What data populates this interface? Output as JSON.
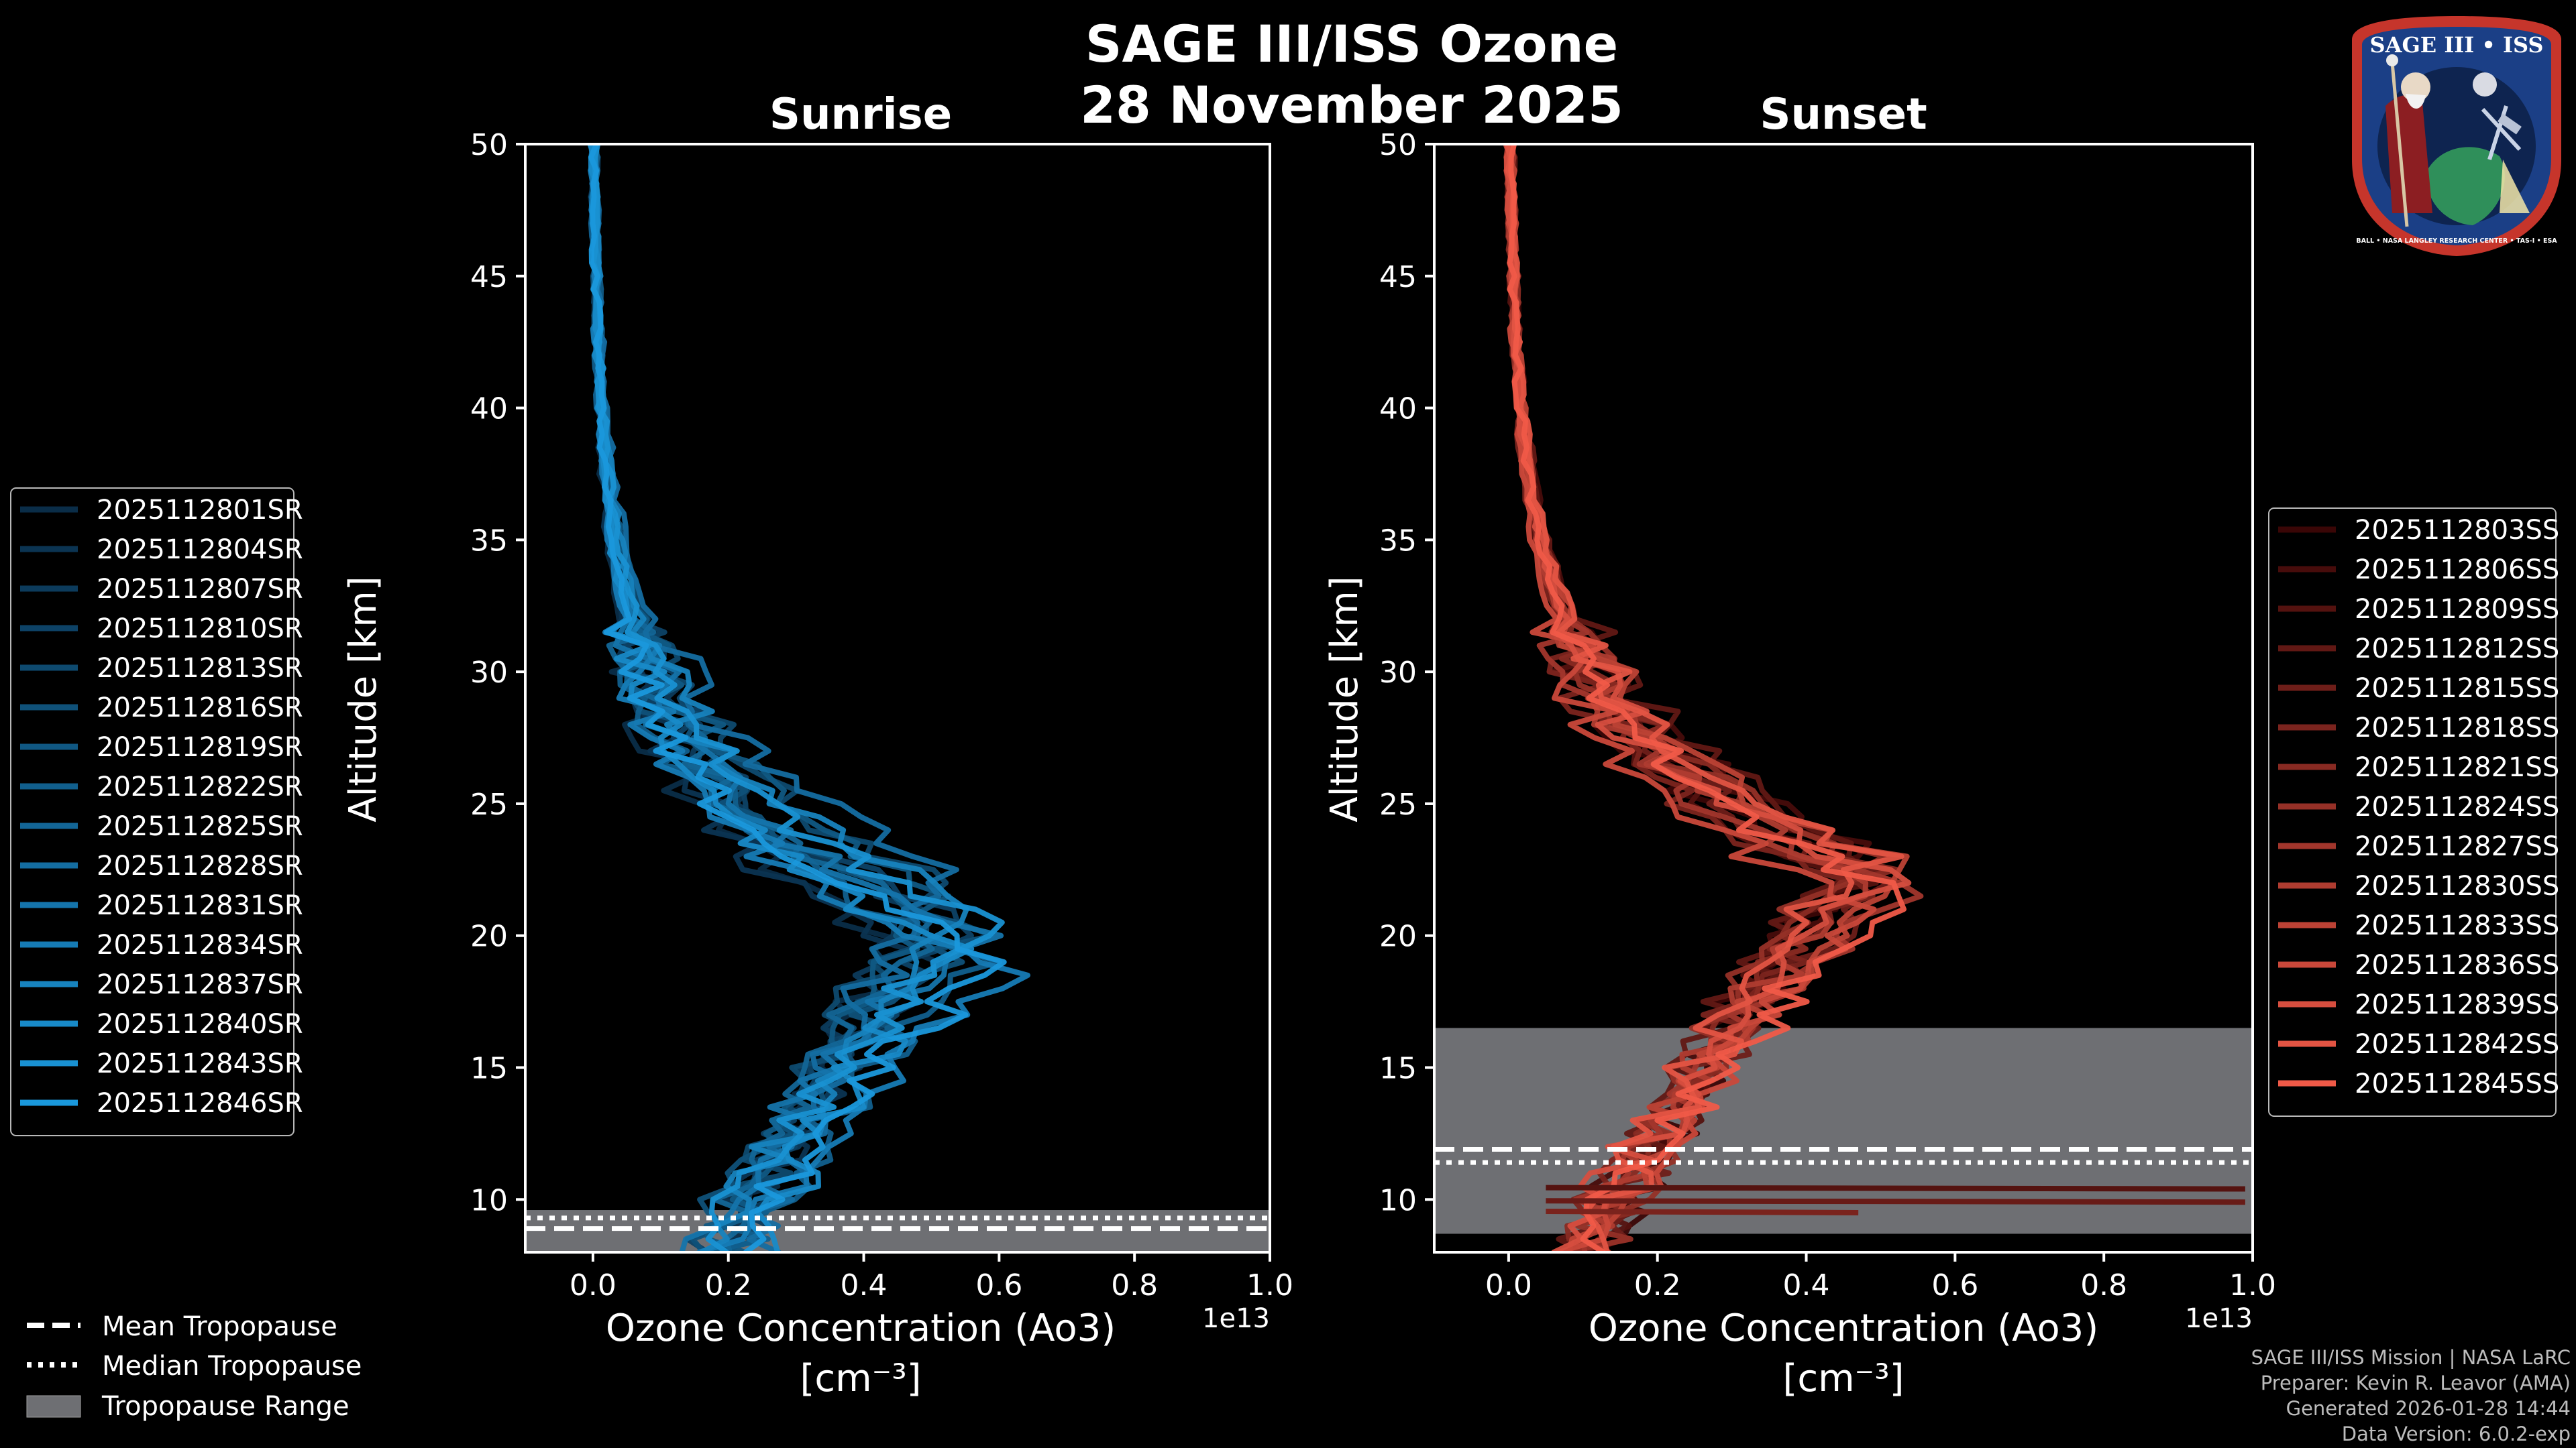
{
  "figure": {
    "title_line1": "SAGE III/ISS Ozone",
    "title_line2": "28 November 2025"
  },
  "colors": {
    "background": "#000000",
    "sunrise_light": "#1a98dc",
    "sunrise_dark": "#0a2d48",
    "sunset_light": "#f05a48",
    "sunset_dark": "#3a0606",
    "tropopause_fill": "#6e6f73",
    "axis": "#ffffff"
  },
  "chart_data": [
    {
      "type": "line",
      "panel": "sunrise",
      "title": "Sunrise",
      "xlabel": "Ozone Concentration (Ao3)",
      "xunits": "[cm⁻³]",
      "ylabel": "Altitude [km]",
      "x_offset_label": "1e13",
      "xlim": [
        -0.1,
        1.0
      ],
      "ylim": [
        8,
        50
      ],
      "xticks": [
        0.0,
        0.2,
        0.4,
        0.6,
        0.8,
        1.0
      ],
      "xtick_labels": [
        "0.0",
        "0.2",
        "0.4",
        "0.6",
        "0.8",
        "1.0"
      ],
      "yticks": [
        10,
        15,
        20,
        25,
        30,
        35,
        40,
        45,
        50
      ],
      "ytick_labels": [
        "10",
        "15",
        "20",
        "25",
        "30",
        "35",
        "40",
        "45",
        "50"
      ],
      "tropopause": {
        "mean": 8.9,
        "median": 9.3,
        "range": [
          8.0,
          9.6
        ]
      },
      "legend_position": "left",
      "series": [
        {
          "name": "2025112801SR",
          "peak_alt": 19.5,
          "peak_val": 0.47,
          "low_val": 0.2
        },
        {
          "name": "2025112804SR",
          "peak_alt": 19.0,
          "peak_val": 0.52,
          "low_val": 0.18
        },
        {
          "name": "2025112807SR",
          "peak_alt": 21.0,
          "peak_val": 0.5,
          "low_val": 0.22
        },
        {
          "name": "2025112810SR",
          "peak_alt": 20.5,
          "peak_val": 0.56,
          "low_val": 0.16
        },
        {
          "name": "2025112813SR",
          "peak_alt": 22.0,
          "peak_val": 0.53,
          "low_val": 0.2
        },
        {
          "name": "2025112816SR",
          "peak_alt": 20.0,
          "peak_val": 0.58,
          "low_val": 0.14
        },
        {
          "name": "2025112819SR",
          "peak_alt": 21.5,
          "peak_val": 0.55,
          "low_val": 0.19
        },
        {
          "name": "2025112822SR",
          "peak_alt": 19.0,
          "peak_val": 0.6,
          "low_val": 0.21
        },
        {
          "name": "2025112825SR",
          "peak_alt": 20.5,
          "peak_val": 0.51,
          "low_val": 0.17
        },
        {
          "name": "2025112828SR",
          "peak_alt": 22.5,
          "peak_val": 0.54,
          "low_val": 0.23
        },
        {
          "name": "2025112831SR",
          "peak_alt": 20.0,
          "peak_val": 0.57,
          "low_val": 0.15
        },
        {
          "name": "2025112834SR",
          "peak_alt": 18.5,
          "peak_val": 0.62,
          "low_val": 0.2
        },
        {
          "name": "2025112837SR",
          "peak_alt": 21.0,
          "peak_val": 0.59,
          "low_val": 0.18
        },
        {
          "name": "2025112840SR",
          "peak_alt": 19.5,
          "peak_val": 0.55,
          "low_val": 0.24
        },
        {
          "name": "2025112843SR",
          "peak_alt": 20.5,
          "peak_val": 0.6,
          "low_val": 0.16
        },
        {
          "name": "2025112846SR",
          "peak_alt": 19.0,
          "peak_val": 0.63,
          "low_val": 0.2
        }
      ]
    },
    {
      "type": "line",
      "panel": "sunset",
      "title": "Sunset",
      "xlabel": "Ozone Concentration (Ao3)",
      "xunits": "[cm⁻³]",
      "ylabel": "Altitude [km]",
      "x_offset_label": "1e13",
      "xlim": [
        -0.1,
        1.0
      ],
      "ylim": [
        8,
        50
      ],
      "xticks": [
        0.0,
        0.2,
        0.4,
        0.6,
        0.8,
        1.0
      ],
      "xtick_labels": [
        "0.0",
        "0.2",
        "0.4",
        "0.6",
        "0.8",
        "1.0"
      ],
      "yticks": [
        10,
        15,
        20,
        25,
        30,
        35,
        40,
        45,
        50
      ],
      "ytick_labels": [
        "10",
        "15",
        "20",
        "25",
        "30",
        "35",
        "40",
        "45",
        "50"
      ],
      "tropopause": {
        "mean": 11.9,
        "median": 11.4,
        "range": [
          8.7,
          16.5
        ]
      },
      "legend_position": "right",
      "series": [
        {
          "name": "2025112803SS",
          "peak_alt": 22.5,
          "peak_val": 0.46,
          "low_val": 0.14
        },
        {
          "name": "2025112806SS",
          "peak_alt": 23.0,
          "peak_val": 0.5,
          "low_val": 0.1
        },
        {
          "name": "2025112809SS",
          "peak_alt": 22.0,
          "peak_val": 0.47,
          "low_val": 0.12
        },
        {
          "name": "2025112812SS",
          "peak_alt": 23.5,
          "peak_val": 0.49,
          "low_val": 0.09
        },
        {
          "name": "2025112815SS",
          "peak_alt": 22.0,
          "peak_val": 0.52,
          "low_val": 0.11
        },
        {
          "name": "2025112818SS",
          "peak_alt": 21.5,
          "peak_val": 0.48,
          "low_val": 0.08
        },
        {
          "name": "2025112821SS",
          "peak_alt": 22.5,
          "peak_val": 0.51,
          "low_val": 0.1
        },
        {
          "name": "2025112824SS",
          "peak_alt": 23.0,
          "peak_val": 0.47,
          "low_val": 0.12
        },
        {
          "name": "2025112827SS",
          "peak_alt": 21.5,
          "peak_val": 0.53,
          "low_val": 0.07
        },
        {
          "name": "2025112830SS",
          "peak_alt": 22.0,
          "peak_val": 0.5,
          "low_val": 0.09
        },
        {
          "name": "2025112833SS",
          "peak_alt": 22.5,
          "peak_val": 0.54,
          "low_val": 0.1
        },
        {
          "name": "2025112836SS",
          "peak_alt": 21.0,
          "peak_val": 0.49,
          "low_val": 0.11
        },
        {
          "name": "2025112839SS",
          "peak_alt": 22.0,
          "peak_val": 0.52,
          "low_val": 0.08
        },
        {
          "name": "2025112842SS",
          "peak_alt": 23.0,
          "peak_val": 0.5,
          "low_val": 0.1
        },
        {
          "name": "2025112845SS",
          "peak_alt": 21.5,
          "peak_val": 0.55,
          "low_val": 0.09
        }
      ],
      "horizontal_streaks": [
        {
          "alt": 10.4,
          "val": 0.99
        },
        {
          "alt": 9.9,
          "val": 0.99
        },
        {
          "alt": 9.5,
          "val": 0.47
        }
      ]
    }
  ],
  "tropopause_legend": {
    "mean": "Mean Tropopause",
    "median": "Median Tropopause",
    "range": "Tropopause Range"
  },
  "footer": {
    "line1": "SAGE III/ISS Mission | NASA LaRC",
    "line2": "Preparer: Kevin R. Leavor (AMA)",
    "line3": "Generated 2026-01-28 14:44",
    "line4": "Data Version: 6.0.2-exp"
  },
  "logo": {
    "title": "SAGE III • ISS",
    "ring_text": "BALL • NASA LANGLEY RESEARCH CENTER • TAS-I • ESA"
  }
}
